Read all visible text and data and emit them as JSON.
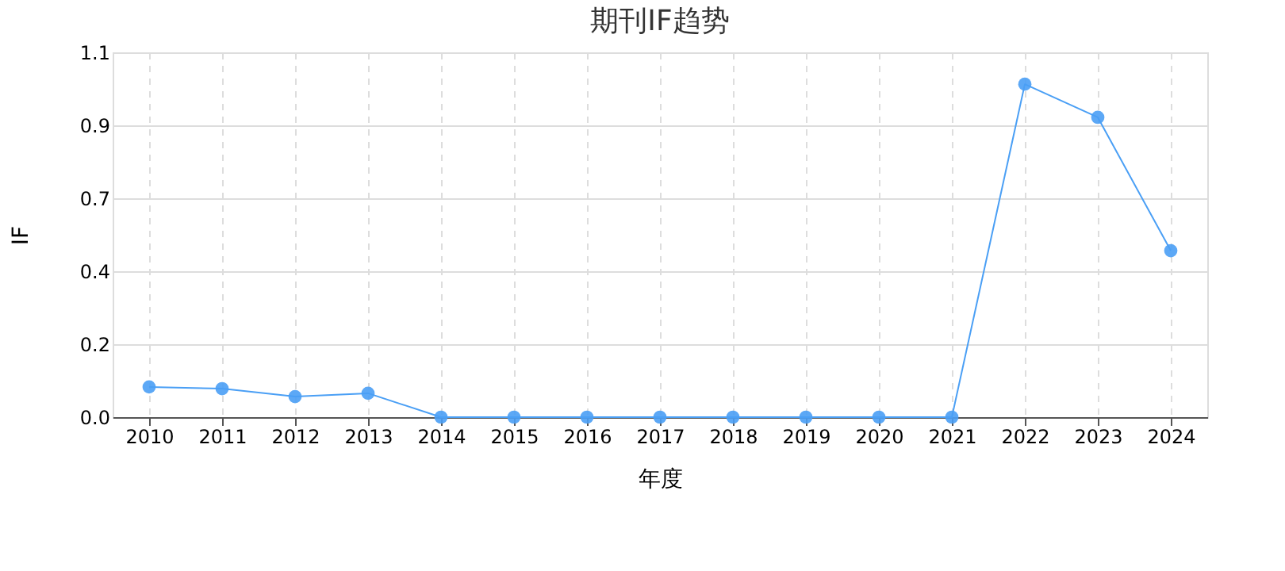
{
  "chart_data": {
    "type": "line",
    "title": "期刊IF趋势",
    "xlabel": "年度",
    "ylabel": "IF",
    "categories": [
      "2010",
      "2011",
      "2012",
      "2013",
      "2014",
      "2015",
      "2016",
      "2017",
      "2018",
      "2019",
      "2020",
      "2021",
      "2022",
      "2023",
      "2024"
    ],
    "series": [
      {
        "color": "#4a9ff5",
        "values": [
          0.091,
          0.086,
          0.062,
          0.072,
          0,
          0,
          0,
          0,
          0,
          0,
          0,
          0,
          1.004,
          0.904,
          0.502
        ]
      }
    ],
    "ylim": [
      0,
      1.1
    ],
    "yticks": [
      {
        "value": 0,
        "label": "0.0"
      },
      {
        "value": 0.22,
        "label": "0.2"
      },
      {
        "value": 0.44,
        "label": "0.4"
      },
      {
        "value": 0.66,
        "label": "0.7"
      },
      {
        "value": 0.88,
        "label": "0.9"
      },
      {
        "value": 1.1,
        "label": "1.1"
      }
    ],
    "grid": true,
    "marker": "circle",
    "line_style": "solid"
  }
}
